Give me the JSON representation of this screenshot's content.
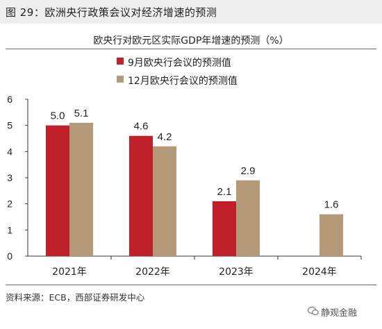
{
  "header": {
    "figure_title": "图 29：欧洲央行政策会议对经济增速的预测"
  },
  "chart_data": {
    "type": "bar",
    "title": "欧央行对欧元区实际GDP年增速的预测（%）",
    "categories": [
      "2021年",
      "2022年",
      "2023年",
      "2024年"
    ],
    "series": [
      {
        "name": "9月欧央行会议的预测值",
        "color": "#c0202a",
        "values": [
          5.0,
          4.6,
          2.1,
          null
        ],
        "labels": [
          "5.0",
          "4.6",
          "2.1",
          ""
        ]
      },
      {
        "name": "12月欧央行会议的预测值",
        "color": "#b59a7a",
        "values": [
          5.1,
          4.2,
          2.9,
          1.6
        ],
        "labels": [
          "5.1",
          "4.2",
          "2.9",
          "1.6"
        ]
      }
    ],
    "ylim": [
      0,
      6
    ],
    "yticks": [
      "0",
      "1",
      "2",
      "3",
      "4",
      "5",
      "6"
    ],
    "grid": false,
    "legend_position": "top-left"
  },
  "footer": {
    "source": "资料来源：ECB，西部证券研发中心",
    "watermark": "静观金融"
  }
}
